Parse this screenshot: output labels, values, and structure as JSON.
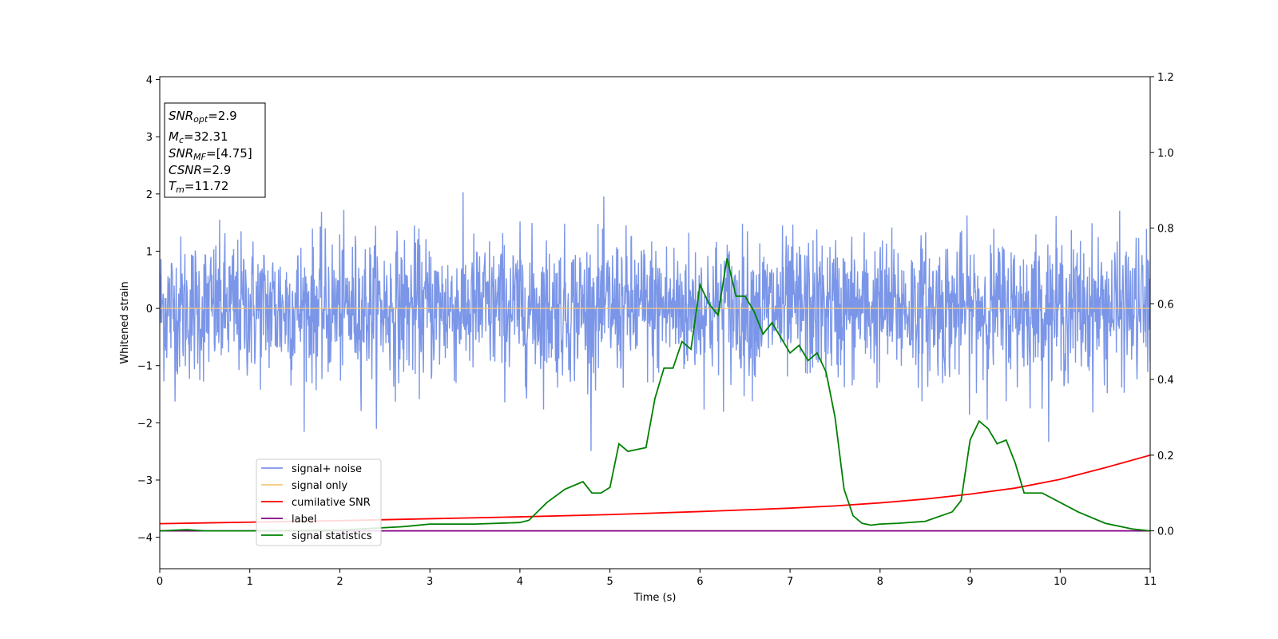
{
  "chart_data": {
    "type": "line",
    "xlabel": "Time (s)",
    "ylabel": "Whitened strain",
    "xlim": [
      0,
      11
    ],
    "ylim": [
      -4.55,
      4.05
    ],
    "y2lim": [
      -0.1,
      1.2
    ],
    "xticks": [
      "0",
      "1",
      "2",
      "3",
      "4",
      "5",
      "6",
      "7",
      "8",
      "9",
      "10",
      "11"
    ],
    "yticks": [
      "4",
      "3",
      "2",
      "1",
      "0",
      "−1",
      "−2",
      "−3",
      "−4"
    ],
    "y2ticks": [
      "1.2",
      "1.0",
      "0.8",
      "0.6",
      "0.4",
      "0.2",
      "0.0"
    ],
    "legend": {
      "placement": "lower-left"
    },
    "annotation": {
      "snr_opt": {
        "base": "SNR",
        "sub": "opt",
        "value": "=2.9"
      },
      "mc": {
        "base": "M",
        "sub": "c",
        "value": "=32.31"
      },
      "snr_mf": {
        "base": "SNR",
        "sub": "MF",
        "value": "=[4.75]"
      },
      "csnr": {
        "base": "CSNR",
        "value": "=2.9"
      },
      "tm": {
        "base": "T",
        "sub": "m",
        "value": "=11.72"
      }
    },
    "series": [
      {
        "name": "signal+ noise",
        "color": "#7b96e8",
        "axis": "left",
        "style": "noise band, approx ±1.3 typical amplitude with peaks to about ±2.5"
      },
      {
        "name": "signal only",
        "color": "#f5c87a",
        "axis": "left",
        "x": [
          0,
          11
        ],
        "y": [
          0,
          0
        ]
      },
      {
        "name": "cumilative SNR",
        "color": "#ff0000",
        "axis": "right",
        "x": [
          0,
          1,
          2,
          3,
          4,
          5,
          6,
          7,
          7.5,
          8,
          8.5,
          9,
          9.5,
          10,
          10.5,
          11
        ],
        "y": [
          0.019,
          0.023,
          0.027,
          0.032,
          0.037,
          0.043,
          0.051,
          0.06,
          0.066,
          0.074,
          0.084,
          0.097,
          0.113,
          0.136,
          0.167,
          0.2
        ]
      },
      {
        "name": "label",
        "color": "#800080",
        "axis": "right",
        "x": [
          0,
          11
        ],
        "y": [
          0,
          0
        ]
      },
      {
        "name": "signal statistics",
        "color": "#008000",
        "axis": "right",
        "x": [
          0,
          0.3,
          0.5,
          1,
          2,
          2.7,
          3,
          3.5,
          4,
          4.1,
          4.3,
          4.5,
          4.7,
          4.8,
          4.9,
          5.0,
          5.1,
          5.2,
          5.3,
          5.4,
          5.5,
          5.6,
          5.7,
          5.8,
          5.9,
          6.0,
          6.1,
          6.2,
          6.3,
          6.4,
          6.5,
          6.6,
          6.7,
          6.8,
          6.9,
          7.0,
          7.1,
          7.2,
          7.3,
          7.4,
          7.5,
          7.6,
          7.7,
          7.8,
          7.9,
          8.0,
          8.2,
          8.5,
          8.8,
          8.9,
          9.0,
          9.1,
          9.2,
          9.3,
          9.4,
          9.5,
          9.6,
          9.8,
          10,
          10.2,
          10.5,
          10.8,
          11
        ],
        "y": [
          0,
          0.003,
          0,
          0,
          0.002,
          0.011,
          0.018,
          0.018,
          0.022,
          0.028,
          0.075,
          0.11,
          0.13,
          0.1,
          0.1,
          0.115,
          0.23,
          0.21,
          0.215,
          0.22,
          0.35,
          0.43,
          0.43,
          0.5,
          0.48,
          0.65,
          0.6,
          0.57,
          0.72,
          0.62,
          0.62,
          0.58,
          0.52,
          0.55,
          0.51,
          0.47,
          0.49,
          0.45,
          0.47,
          0.42,
          0.3,
          0.11,
          0.04,
          0.02,
          0.015,
          0.018,
          0.02,
          0.025,
          0.05,
          0.08,
          0.24,
          0.29,
          0.27,
          0.23,
          0.24,
          0.18,
          0.1,
          0.1,
          0.075,
          0.05,
          0.02,
          0.005,
          0
        ]
      }
    ]
  }
}
